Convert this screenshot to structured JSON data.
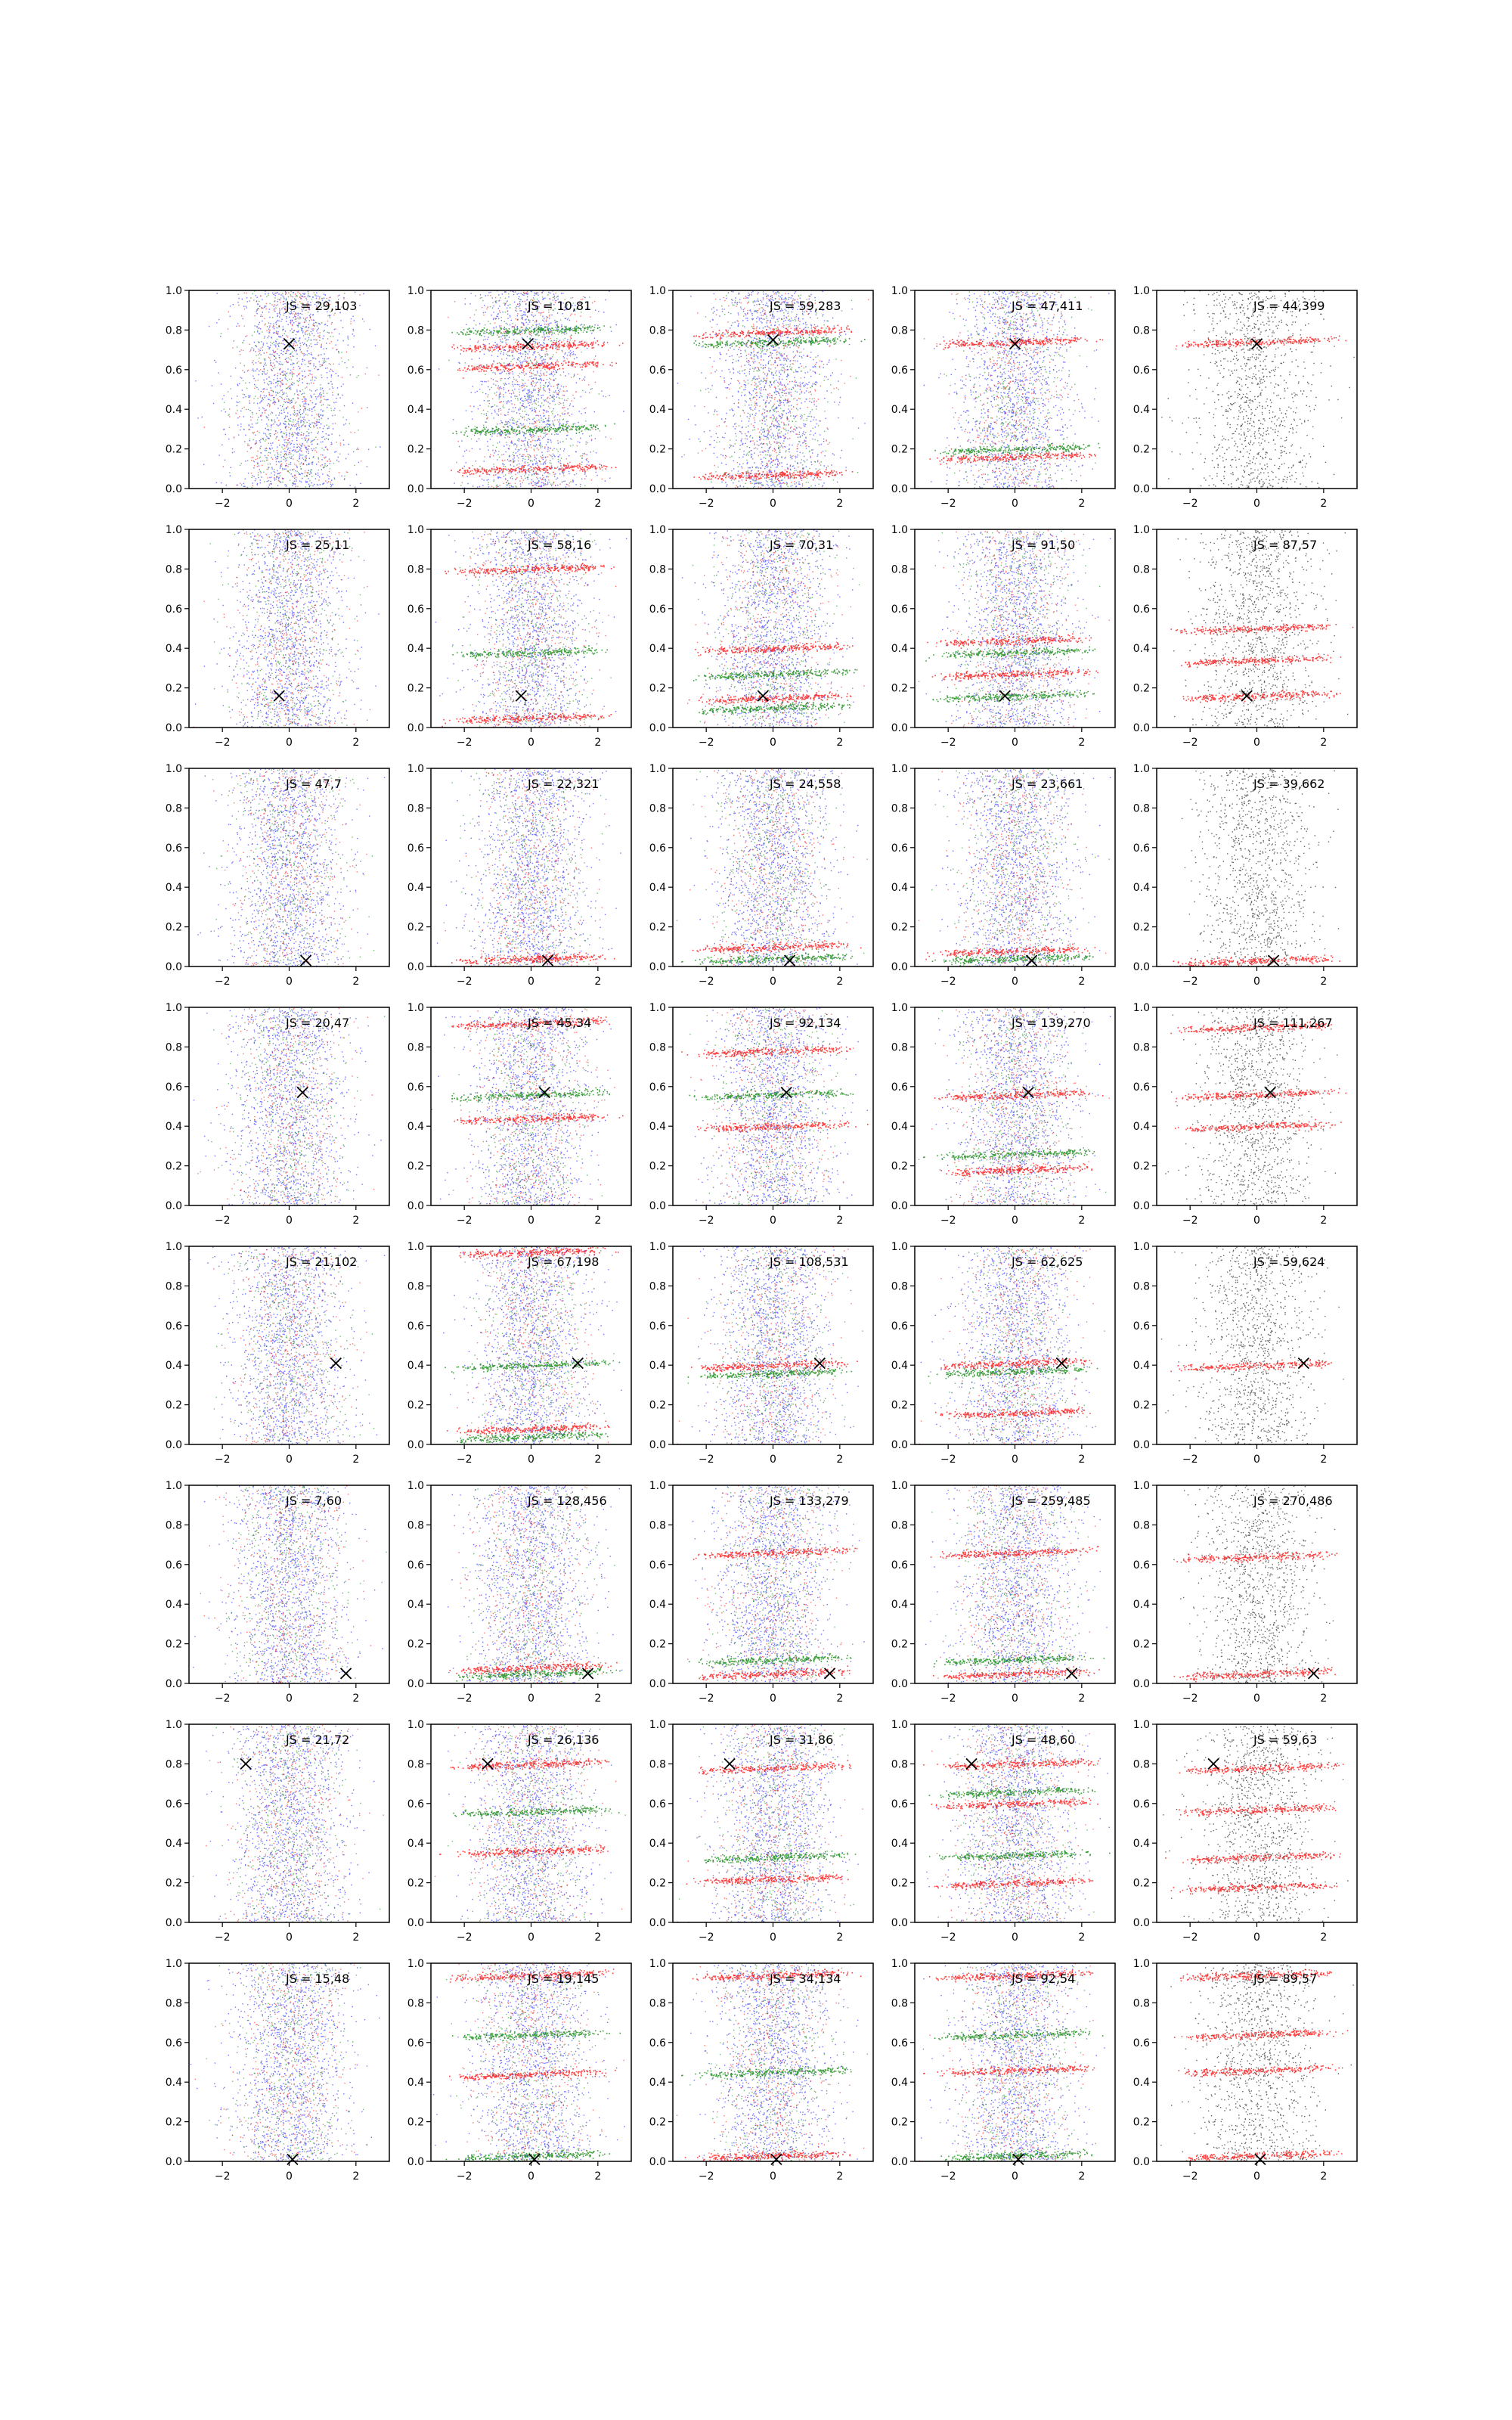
{
  "chart_data": {
    "type": "scatter",
    "layout": {
      "rows": 8,
      "cols": 5
    },
    "xlim": [
      -3,
      3
    ],
    "ylim": [
      0,
      1
    ],
    "xticks": [
      -2,
      0,
      2
    ],
    "yticks": [
      0.0,
      0.2,
      0.4,
      0.6,
      0.8,
      1.0
    ],
    "xtick_labels": [
      "−2",
      "0",
      "2"
    ],
    "ytick_labels": [
      "0.0",
      "0.2",
      "0.4",
      "0.6",
      "0.8",
      "1.0"
    ],
    "colors": {
      "background_points": "#0000ff",
      "secondary_points": "#008000",
      "selected_points": "#ff0000",
      "grey_points": "#000000",
      "marker": "#000000"
    },
    "panels": [
      {
        "row": 0,
        "col": 0,
        "label": "JS = 29,103",
        "marker": [
          0.0,
          0.73
        ],
        "style": "mix",
        "bands": []
      },
      {
        "row": 0,
        "col": 1,
        "label": "JS = 10,81",
        "marker": [
          -0.1,
          0.73
        ],
        "style": "mix",
        "bands": [
          0.72,
          0.8,
          0.62,
          0.3,
          0.1
        ]
      },
      {
        "row": 0,
        "col": 2,
        "label": "JS = 59,283",
        "marker": [
          0.0,
          0.75
        ],
        "style": "mix",
        "bands": [
          0.79,
          0.74,
          0.07
        ]
      },
      {
        "row": 0,
        "col": 3,
        "label": "JS = 47,411",
        "marker": [
          0.0,
          0.73
        ],
        "style": "mix",
        "bands": [
          0.74,
          0.2,
          0.16
        ]
      },
      {
        "row": 0,
        "col": 4,
        "label": "JS = 44,399",
        "marker": [
          0.0,
          0.73
        ],
        "style": "grey",
        "bands": [
          0.74
        ]
      },
      {
        "row": 1,
        "col": 0,
        "label": "JS = 25,11",
        "marker": [
          -0.3,
          0.16
        ],
        "style": "mix",
        "bands": []
      },
      {
        "row": 1,
        "col": 1,
        "label": "JS = 58,16",
        "marker": [
          -0.3,
          0.16
        ],
        "style": "mix",
        "bands": [
          0.8,
          0.38,
          0.05
        ]
      },
      {
        "row": 1,
        "col": 2,
        "label": "JS = 70,31",
        "marker": [
          -0.3,
          0.16
        ],
        "style": "mix",
        "bands": [
          0.4,
          0.27,
          0.15,
          0.1
        ]
      },
      {
        "row": 1,
        "col": 3,
        "label": "JS = 91,50",
        "marker": [
          -0.3,
          0.16
        ],
        "style": "mix",
        "bands": [
          0.44,
          0.38,
          0.27,
          0.16
        ]
      },
      {
        "row": 1,
        "col": 4,
        "label": "JS = 87,57",
        "marker": [
          -0.3,
          0.16
        ],
        "style": "grey",
        "bands": [
          0.5,
          0.34,
          0.16
        ]
      },
      {
        "row": 2,
        "col": 0,
        "label": "JS = 47,7",
        "marker": [
          0.5,
          0.03
        ],
        "style": "mix",
        "bands": []
      },
      {
        "row": 2,
        "col": 1,
        "label": "JS = 22,321",
        "marker": [
          0.5,
          0.03
        ],
        "style": "mix",
        "bands": [
          0.04
        ]
      },
      {
        "row": 2,
        "col": 2,
        "label": "JS = 24,558",
        "marker": [
          0.5,
          0.03
        ],
        "style": "mix",
        "bands": [
          0.1,
          0.04
        ]
      },
      {
        "row": 2,
        "col": 3,
        "label": "JS = 23,661",
        "marker": [
          0.5,
          0.03
        ],
        "style": "mix",
        "bands": [
          0.08,
          0.04
        ]
      },
      {
        "row": 2,
        "col": 4,
        "label": "JS = 39,662",
        "marker": [
          0.5,
          0.03
        ],
        "style": "grey",
        "bands": [
          0.03
        ]
      },
      {
        "row": 3,
        "col": 0,
        "label": "JS = 20,47",
        "marker": [
          0.4,
          0.57
        ],
        "style": "mix",
        "bands": []
      },
      {
        "row": 3,
        "col": 1,
        "label": "JS = 45,34",
        "marker": [
          0.4,
          0.57
        ],
        "style": "mix",
        "bands": [
          0.92,
          0.56,
          0.44
        ]
      },
      {
        "row": 3,
        "col": 2,
        "label": "JS = 92,134",
        "marker": [
          0.4,
          0.57
        ],
        "style": "mix",
        "bands": [
          0.78,
          0.56,
          0.4
        ]
      },
      {
        "row": 3,
        "col": 3,
        "label": "JS = 139,270",
        "marker": [
          0.4,
          0.57
        ],
        "style": "mix",
        "bands": [
          0.56,
          0.26,
          0.18
        ]
      },
      {
        "row": 3,
        "col": 4,
        "label": "JS = 111,267",
        "marker": [
          0.4,
          0.57
        ],
        "style": "grey",
        "bands": [
          0.9,
          0.56,
          0.4
        ]
      },
      {
        "row": 4,
        "col": 0,
        "label": "JS = 21,102",
        "marker": [
          1.4,
          0.41
        ],
        "style": "mix",
        "bands": []
      },
      {
        "row": 4,
        "col": 1,
        "label": "JS = 67,198",
        "marker": [
          1.4,
          0.41
        ],
        "style": "mix",
        "bands": [
          0.97,
          0.4,
          0.08,
          0.04
        ]
      },
      {
        "row": 4,
        "col": 2,
        "label": "JS = 108,531",
        "marker": [
          1.4,
          0.41
        ],
        "style": "mix",
        "bands": [
          0.4,
          0.36
        ]
      },
      {
        "row": 4,
        "col": 3,
        "label": "JS = 62,625",
        "marker": [
          1.4,
          0.41
        ],
        "style": "mix",
        "bands": [
          0.41,
          0.37,
          0.16
        ]
      },
      {
        "row": 4,
        "col": 4,
        "label": "JS = 59,624",
        "marker": [
          1.4,
          0.41
        ],
        "style": "grey",
        "bands": [
          0.4
        ]
      },
      {
        "row": 5,
        "col": 0,
        "label": "JS = 7,60",
        "marker": [
          1.7,
          0.05
        ],
        "style": "mix",
        "bands": []
      },
      {
        "row": 5,
        "col": 1,
        "label": "JS = 128,456",
        "marker": [
          1.7,
          0.05
        ],
        "style": "mix",
        "bands": [
          0.08,
          0.05
        ]
      },
      {
        "row": 5,
        "col": 2,
        "label": "JS = 133,279",
        "marker": [
          1.7,
          0.05
        ],
        "style": "mix",
        "bands": [
          0.66,
          0.12,
          0.05
        ]
      },
      {
        "row": 5,
        "col": 3,
        "label": "JS = 259,485",
        "marker": [
          1.7,
          0.05
        ],
        "style": "mix",
        "bands": [
          0.66,
          0.12,
          0.05
        ]
      },
      {
        "row": 5,
        "col": 4,
        "label": "JS = 270,486",
        "marker": [
          1.7,
          0.05
        ],
        "style": "grey",
        "bands": [
          0.64,
          0.05
        ]
      },
      {
        "row": 6,
        "col": 0,
        "label": "JS = 21,72",
        "marker": [
          -1.3,
          0.8
        ],
        "style": "mix",
        "bands": []
      },
      {
        "row": 6,
        "col": 1,
        "label": "JS = 26,136",
        "marker": [
          -1.3,
          0.8
        ],
        "style": "mix",
        "bands": [
          0.8,
          0.56,
          0.36
        ]
      },
      {
        "row": 6,
        "col": 2,
        "label": "JS = 31,86",
        "marker": [
          -1.3,
          0.8
        ],
        "style": "mix",
        "bands": [
          0.78,
          0.33,
          0.22
        ]
      },
      {
        "row": 6,
        "col": 3,
        "label": "JS = 48,60",
        "marker": [
          -1.3,
          0.8
        ],
        "style": "mix",
        "bands": [
          0.8,
          0.66,
          0.6,
          0.34,
          0.2
        ]
      },
      {
        "row": 6,
        "col": 4,
        "label": "JS = 59,63",
        "marker": [
          -1.3,
          0.8
        ],
        "style": "grey",
        "bands": [
          0.78,
          0.57,
          0.33,
          0.18
        ]
      },
      {
        "row": 7,
        "col": 0,
        "label": "JS = 15,48",
        "marker": [
          0.1,
          0.01
        ],
        "style": "mix",
        "bands": []
      },
      {
        "row": 7,
        "col": 1,
        "label": "JS = 19,145",
        "marker": [
          0.1,
          0.01
        ],
        "style": "mix",
        "bands": [
          0.94,
          0.64,
          0.44,
          0.03
        ]
      },
      {
        "row": 7,
        "col": 2,
        "label": "JS = 34,134",
        "marker": [
          0.1,
          0.01
        ],
        "style": "mix",
        "bands": [
          0.94,
          0.45,
          0.03
        ]
      },
      {
        "row": 7,
        "col": 3,
        "label": "JS = 92,54",
        "marker": [
          0.1,
          0.01
        ],
        "style": "mix",
        "bands": [
          0.94,
          0.64,
          0.46,
          0.03
        ]
      },
      {
        "row": 7,
        "col": 4,
        "label": "JS = 89,57",
        "marker": [
          0.1,
          0.01
        ],
        "style": "grey",
        "bands": [
          0.94,
          0.64,
          0.46,
          0.03
        ]
      }
    ]
  }
}
